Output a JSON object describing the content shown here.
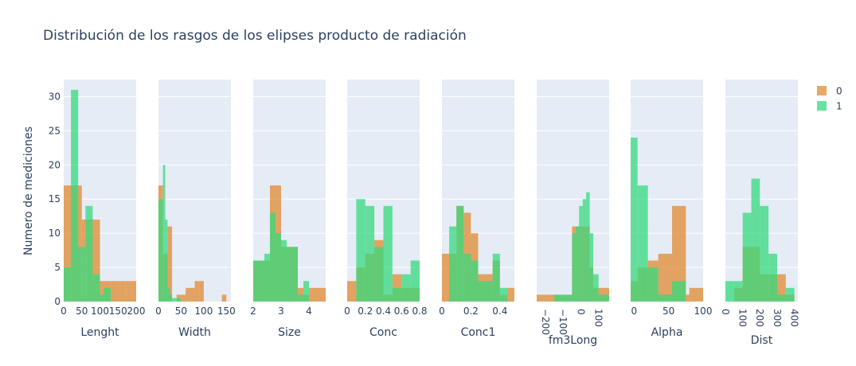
{
  "chart_data": {
    "type": "bar",
    "title": "Distribución de los rasgos de los elipses producto de radiación",
    "ylabel": "Numero de mediciones",
    "ylim": [
      0,
      32.5
    ],
    "y_ticks": [
      "0",
      "5",
      "10",
      "15",
      "20",
      "25",
      "30"
    ],
    "legend": {
      "position": "right",
      "entries": [
        "0",
        "1"
      ]
    },
    "colors": {
      "series_0": "#e08a30",
      "series_1": "#36d97e",
      "plot_bg": "#e5ecf6",
      "grid": "#ffffff",
      "text": "#2a3f5f"
    },
    "series_names": [
      "0",
      "1"
    ],
    "panels": [
      {
        "xlabel": "Lenght",
        "xlim": [
          0,
          200
        ],
        "ticks": [
          {
            "v": 0,
            "t": "0"
          },
          {
            "v": 50,
            "t": "50"
          },
          {
            "v": 100,
            "t": "100"
          },
          {
            "v": 150,
            "t": "150"
          },
          {
            "v": 200,
            "t": "200"
          }
        ],
        "series": [
          {
            "bins": [
              [
                0,
                20,
                17
              ],
              [
                20,
                40,
                17
              ],
              [
                40,
                50,
                17
              ],
              [
                50,
                60,
                12
              ],
              [
                60,
                80,
                12
              ],
              [
                80,
                100,
                12
              ],
              [
                100,
                110,
                3
              ],
              [
                110,
                130,
                3
              ],
              [
                130,
                150,
                3
              ],
              [
                150,
                170,
                3
              ],
              [
                170,
                200,
                3
              ]
            ]
          },
          {
            "bins": [
              [
                0,
                20,
                5
              ],
              [
                20,
                40,
                31
              ],
              [
                40,
                50,
                8
              ],
              [
                50,
                60,
                8
              ],
              [
                60,
                80,
                14
              ],
              [
                80,
                100,
                4
              ],
              [
                100,
                110,
                1
              ],
              [
                110,
                130,
                2
              ],
              [
                130,
                150,
                0
              ],
              [
                150,
                170,
                0
              ],
              [
                170,
                200,
                0
              ]
            ]
          }
        ]
      },
      {
        "xlabel": "Width",
        "xlim": [
          0,
          160
        ],
        "ticks": [
          {
            "v": 0,
            "t": "0"
          },
          {
            "v": 50,
            "t": "50"
          },
          {
            "v": 100,
            "t": "100"
          },
          {
            "v": 150,
            "t": "150"
          }
        ],
        "series": [
          {
            "bins": [
              [
                0,
                10,
                17
              ],
              [
                10,
                20,
                7
              ],
              [
                20,
                30,
                11
              ],
              [
                30,
                40,
                0
              ],
              [
                40,
                50,
                1
              ],
              [
                50,
                60,
                1
              ],
              [
                60,
                70,
                2
              ],
              [
                70,
                80,
                2
              ],
              [
                80,
                90,
                3
              ],
              [
                90,
                100,
                3
              ],
              [
                140,
                150,
                1
              ]
            ]
          },
          {
            "bins": [
              [
                0,
                10,
                15
              ],
              [
                10,
                15,
                20
              ],
              [
                15,
                20,
                12
              ],
              [
                20,
                25,
                2
              ],
              [
                25,
                30,
                1
              ],
              [
                30,
                40,
                0.5
              ],
              [
                40,
                50,
                0.5
              ]
            ]
          }
        ]
      },
      {
        "xlabel": "Size",
        "xlim": [
          2,
          4.6
        ],
        "ticks": [
          {
            "v": 2,
            "t": "2"
          },
          {
            "v": 3,
            "t": "3"
          },
          {
            "v": 4,
            "t": "4"
          }
        ],
        "series": [
          {
            "bins": [
              [
                2,
                2.4,
                6
              ],
              [
                2.4,
                2.6,
                6
              ],
              [
                2.6,
                2.8,
                17
              ],
              [
                2.8,
                3.0,
                17
              ],
              [
                3.0,
                3.2,
                8
              ],
              [
                3.2,
                3.4,
                8
              ],
              [
                3.4,
                3.6,
                8
              ],
              [
                3.6,
                3.8,
                2
              ],
              [
                3.8,
                4.0,
                1
              ],
              [
                4.0,
                4.6,
                2
              ]
            ]
          },
          {
            "bins": [
              [
                2,
                2.4,
                6
              ],
              [
                2.4,
                2.6,
                7
              ],
              [
                2.6,
                2.8,
                13
              ],
              [
                2.8,
                3.0,
                10
              ],
              [
                3.0,
                3.2,
                9
              ],
              [
                3.2,
                3.4,
                8
              ],
              [
                3.4,
                3.6,
                8
              ],
              [
                3.6,
                3.8,
                1
              ],
              [
                3.8,
                4.0,
                3
              ],
              [
                4.0,
                4.6,
                0
              ]
            ]
          }
        ]
      },
      {
        "xlabel": "Conc",
        "xlim": [
          0,
          0.8
        ],
        "ticks": [
          {
            "v": 0,
            "t": "0"
          },
          {
            "v": 0.2,
            "t": "0.2"
          },
          {
            "v": 0.4,
            "t": "0.4"
          },
          {
            "v": 0.6,
            "t": "0.6"
          },
          {
            "v": 0.8,
            "t": "0.8"
          }
        ],
        "series": [
          {
            "bins": [
              [
                0,
                0.1,
                3
              ],
              [
                0.1,
                0.2,
                5
              ],
              [
                0.2,
                0.3,
                7
              ],
              [
                0.3,
                0.4,
                9
              ],
              [
                0.4,
                0.5,
                1
              ],
              [
                0.5,
                0.6,
                4
              ],
              [
                0.6,
                0.7,
                2
              ],
              [
                0.7,
                0.8,
                2
              ]
            ]
          },
          {
            "bins": [
              [
                0,
                0.1,
                0
              ],
              [
                0.1,
                0.2,
                15
              ],
              [
                0.2,
                0.3,
                14
              ],
              [
                0.3,
                0.4,
                8
              ],
              [
                0.4,
                0.5,
                14
              ],
              [
                0.5,
                0.6,
                2
              ],
              [
                0.6,
                0.7,
                4
              ],
              [
                0.7,
                0.8,
                6
              ]
            ]
          }
        ]
      },
      {
        "xlabel": "Conc1",
        "xlim": [
          0,
          0.5
        ],
        "ticks": [
          {
            "v": 0,
            "t": "0"
          },
          {
            "v": 0.2,
            "t": "0.2"
          },
          {
            "v": 0.4,
            "t": "0.4"
          }
        ],
        "series": [
          {
            "bins": [
              [
                0,
                0.05,
                7
              ],
              [
                0.05,
                0.1,
                7
              ],
              [
                0.1,
                0.15,
                14
              ],
              [
                0.15,
                0.2,
                13
              ],
              [
                0.2,
                0.25,
                10
              ],
              [
                0.25,
                0.3,
                4
              ],
              [
                0.3,
                0.35,
                4
              ],
              [
                0.35,
                0.4,
                6
              ],
              [
                0.4,
                0.45,
                1
              ],
              [
                0.45,
                0.5,
                2
              ]
            ]
          },
          {
            "bins": [
              [
                0,
                0.05,
                0
              ],
              [
                0.05,
                0.1,
                11
              ],
              [
                0.1,
                0.15,
                14
              ],
              [
                0.15,
                0.2,
                7
              ],
              [
                0.2,
                0.25,
                6
              ],
              [
                0.25,
                0.3,
                3
              ],
              [
                0.3,
                0.35,
                3
              ],
              [
                0.35,
                0.4,
                7
              ],
              [
                0.4,
                0.45,
                2
              ],
              [
                0.45,
                0.5,
                0
              ]
            ]
          }
        ]
      },
      {
        "xlabel": "fm3Long",
        "xlim": [
          -250,
          160
        ],
        "ticks": [
          {
            "v": -200,
            "t": "−200"
          },
          {
            "v": -100,
            "t": "−100"
          },
          {
            "v": 0,
            "t": "0"
          },
          {
            "v": 100,
            "t": "100"
          }
        ],
        "series": [
          {
            "bins": [
              [
                -250,
                -200,
                1
              ],
              [
                -200,
                -150,
                1
              ],
              [
                -150,
                -100,
                1
              ],
              [
                -100,
                -50,
                1
              ],
              [
                -50,
                -30,
                11
              ],
              [
                -30,
                -10,
                11
              ],
              [
                -10,
                10,
                11
              ],
              [
                10,
                30,
                11
              ],
              [
                30,
                50,
                11
              ],
              [
                50,
                70,
                5
              ],
              [
                70,
                100,
                2
              ],
              [
                100,
                160,
                2
              ]
            ]
          },
          {
            "bins": [
              [
                -250,
                -200,
                0
              ],
              [
                -200,
                -150,
                0
              ],
              [
                -150,
                -100,
                1
              ],
              [
                -100,
                -50,
                1
              ],
              [
                -50,
                -30,
                10
              ],
              [
                -30,
                -10,
                11
              ],
              [
                -10,
                10,
                14
              ],
              [
                10,
                30,
                15
              ],
              [
                30,
                50,
                16
              ],
              [
                50,
                70,
                10
              ],
              [
                70,
                100,
                4
              ],
              [
                100,
                160,
                1
              ]
            ]
          }
        ]
      },
      {
        "xlabel": "Alpha",
        "xlim": [
          -5,
          100
        ],
        "ticks": [
          {
            "v": 0,
            "t": "0"
          },
          {
            "v": 50,
            "t": "50"
          },
          {
            "v": 100,
            "t": "100"
          }
        ],
        "series": [
          {
            "bins": [
              [
                -5,
                5,
                3
              ],
              [
                5,
                20,
                5
              ],
              [
                20,
                35,
                6
              ],
              [
                35,
                55,
                7
              ],
              [
                55,
                75,
                14
              ],
              [
                75,
                80,
                1
              ],
              [
                80,
                100,
                2
              ]
            ]
          },
          {
            "bins": [
              [
                -5,
                5,
                24
              ],
              [
                5,
                20,
                17
              ],
              [
                20,
                35,
                5
              ],
              [
                35,
                55,
                1
              ],
              [
                55,
                75,
                3
              ],
              [
                75,
                80,
                0
              ],
              [
                80,
                100,
                0
              ]
            ]
          }
        ]
      },
      {
        "xlabel": "Dist",
        "xlim": [
          0,
          420
        ],
        "ticks": [
          {
            "v": 0,
            "t": "0"
          },
          {
            "v": 100,
            "t": "100"
          },
          {
            "v": 200,
            "t": "200"
          },
          {
            "v": 300,
            "t": "300"
          },
          {
            "v": 400,
            "t": "400"
          }
        ],
        "series": [
          {
            "bins": [
              [
                0,
                50,
                0
              ],
              [
                50,
                100,
                2
              ],
              [
                100,
                150,
                8
              ],
              [
                150,
                200,
                8
              ],
              [
                200,
                250,
                4
              ],
              [
                250,
                300,
                4
              ],
              [
                300,
                350,
                4
              ],
              [
                350,
                400,
                1
              ]
            ]
          },
          {
            "bins": [
              [
                0,
                50,
                3
              ],
              [
                50,
                100,
                3
              ],
              [
                100,
                150,
                13
              ],
              [
                150,
                200,
                18
              ],
              [
                200,
                250,
                14
              ],
              [
                250,
                300,
                7
              ],
              [
                300,
                350,
                1
              ],
              [
                350,
                400,
                2
              ]
            ]
          }
        ]
      }
    ]
  }
}
